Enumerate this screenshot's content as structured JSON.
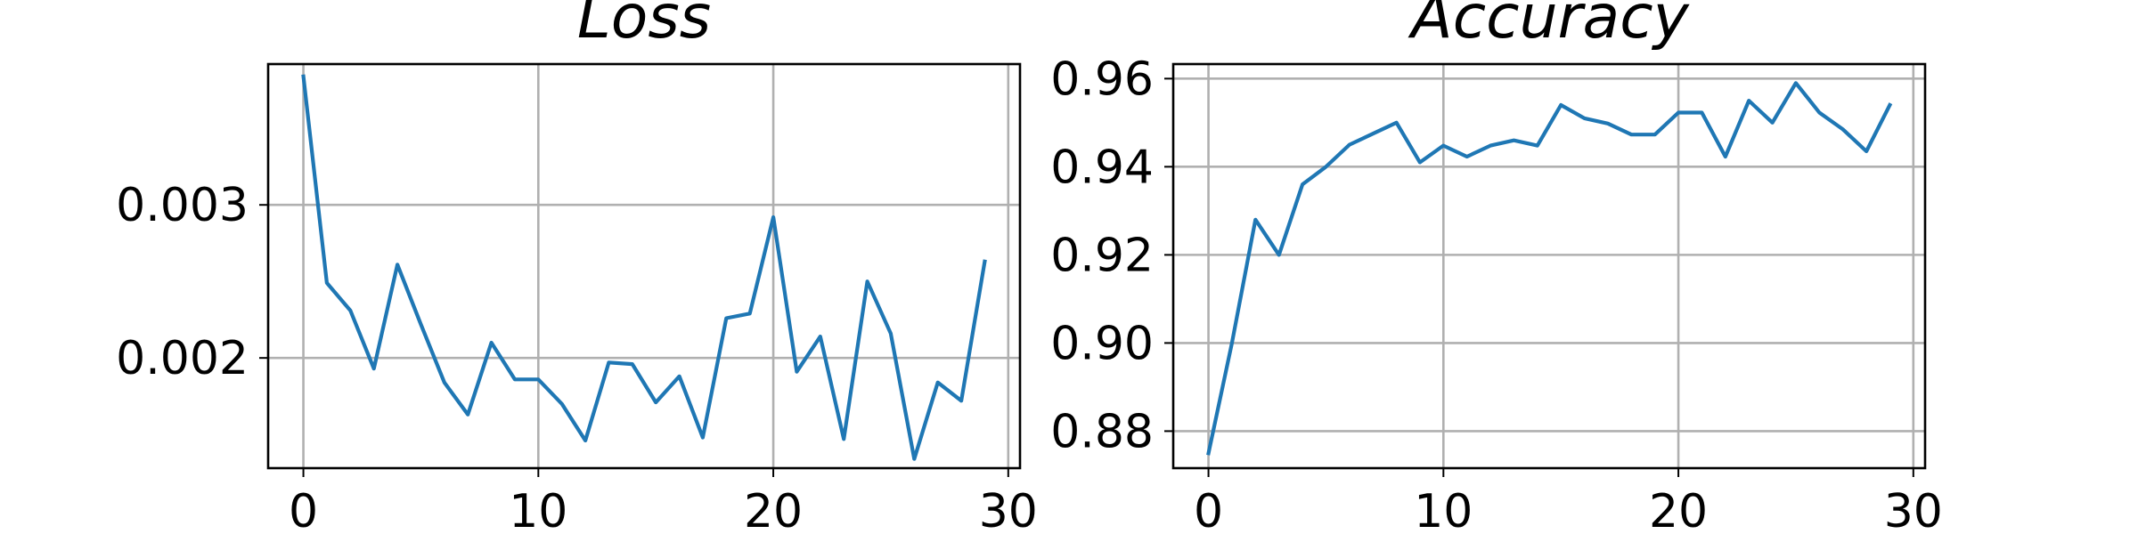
{
  "chart_data": [
    {
      "type": "line",
      "title": "Loss",
      "xlabel": "",
      "ylabel": "",
      "xlim": [
        -1.5,
        30.5
      ],
      "ylim": [
        0.00128,
        0.00392
      ],
      "xticks": [
        0,
        10,
        20,
        30
      ],
      "xtick_labels": [
        "0",
        "10",
        "20",
        "30"
      ],
      "yticks": [
        0.002,
        0.003
      ],
      "ytick_labels": [
        "0.002",
        "0.003"
      ],
      "grid": true,
      "line_color": "#1f77b4",
      "series": [
        {
          "x": [
            0,
            1,
            2,
            3,
            4,
            5,
            6,
            7,
            8,
            9,
            10,
            11,
            12,
            13,
            14,
            15,
            16,
            17,
            18,
            19,
            20,
            21,
            22,
            23,
            24,
            25,
            26,
            27,
            28,
            29
          ],
          "values": [
            0.00384,
            0.00249,
            0.00231,
            0.00193,
            0.00261,
            0.00222,
            0.00184,
            0.00163,
            0.0021,
            0.00186,
            0.00186,
            0.0017,
            0.00146,
            0.00197,
            0.00196,
            0.00171,
            0.00188,
            0.00148,
            0.00226,
            0.00229,
            0.00292,
            0.00191,
            0.00214,
            0.00147,
            0.0025,
            0.00216,
            0.00134,
            0.00184,
            0.00172,
            0.00263
          ]
        }
      ]
    },
    {
      "type": "line",
      "title": "Accuracy",
      "xlabel": "",
      "ylabel": "",
      "xlim": [
        -1.5,
        30.5
      ],
      "ylim": [
        0.8716,
        0.9633
      ],
      "xticks": [
        0,
        10,
        20,
        30
      ],
      "xtick_labels": [
        "0",
        "10",
        "20",
        "30"
      ],
      "yticks": [
        0.88,
        0.9,
        0.92,
        0.94,
        0.96
      ],
      "ytick_labels": [
        "0.88",
        "0.90",
        "0.92",
        "0.94",
        "0.96"
      ],
      "grid": true,
      "line_color": "#1f77b4",
      "series": [
        {
          "x": [
            0,
            1,
            2,
            3,
            4,
            5,
            6,
            7,
            8,
            9,
            10,
            11,
            12,
            13,
            14,
            15,
            16,
            17,
            18,
            19,
            20,
            21,
            22,
            23,
            24,
            25,
            26,
            27,
            28,
            29
          ],
          "values": [
            0.875,
            0.9,
            0.928,
            0.92,
            0.936,
            0.94,
            0.945,
            0.9475,
            0.95,
            0.941,
            0.9448,
            0.9423,
            0.9448,
            0.946,
            0.9448,
            0.954,
            0.951,
            0.9498,
            0.9473,
            0.9473,
            0.9523,
            0.9523,
            0.9423,
            0.955,
            0.95,
            0.959,
            0.9523,
            0.9485,
            0.9435,
            0.954
          ]
        }
      ]
    }
  ]
}
